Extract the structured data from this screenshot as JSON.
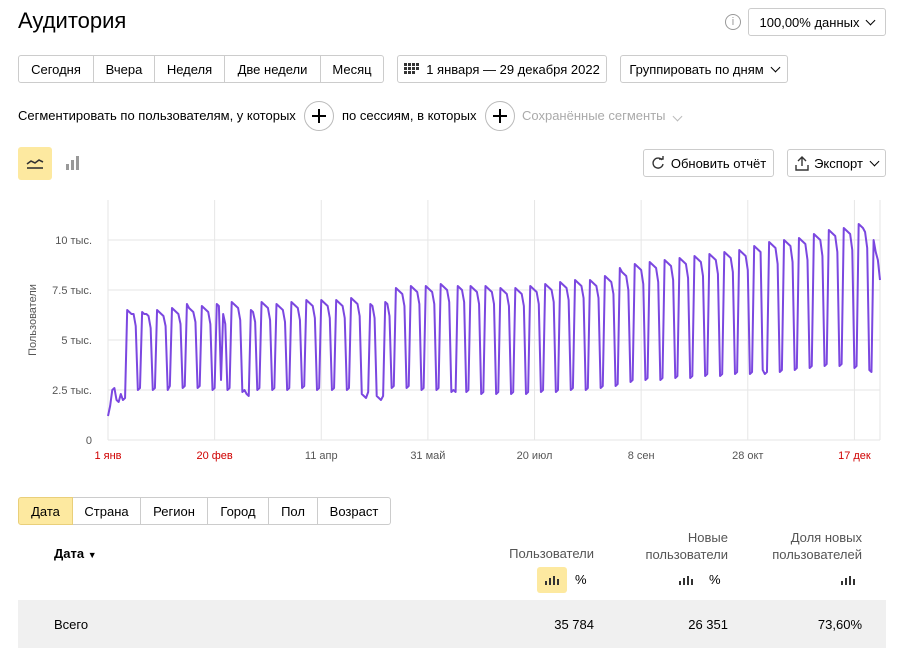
{
  "header": {
    "title": "Аудитория",
    "sampling": "100,00% данных"
  },
  "periods": [
    "Сегодня",
    "Вчера",
    "Неделя",
    "Две недели",
    "Месяц"
  ],
  "date_range": "1 января — 29 декабря 2022",
  "grouping": "Группировать по дням",
  "segment": {
    "by_users": "Сегментировать по пользователям, у которых",
    "by_sessions": "по сессиям, в которых",
    "saved": "Сохранённые сегменты"
  },
  "actions": {
    "refresh": "Обновить отчёт",
    "export": "Экспорт"
  },
  "chart_data": {
    "type": "line",
    "y_label": "Пользователи",
    "color": "#7b47e0",
    "label_color": "#555555",
    "weekend_color": "#d00000",
    "grid": true,
    "ylim": [
      0,
      12000
    ],
    "yticks": [
      0,
      {
        "value": 2500,
        "label": "2.5 тыс."
      },
      {
        "value": 5000,
        "label": "5 тыс."
      },
      {
        "value": 7500,
        "label": "7.5 тыс."
      },
      {
        "value": 10000,
        "label": "10 тыс."
      }
    ],
    "categories": [
      "1 янв",
      null,
      null,
      null,
      null,
      null,
      null,
      null,
      null,
      null,
      null,
      null,
      null,
      null,
      null,
      null,
      null,
      null,
      null,
      null,
      null,
      null,
      null,
      null,
      null,
      null,
      null,
      null,
      null,
      null,
      null,
      null,
      null,
      null,
      null,
      null,
      null,
      null,
      null,
      null,
      null,
      null,
      null,
      null,
      null,
      null,
      null,
      null,
      null,
      null,
      "20 фев",
      null,
      null,
      null,
      null,
      null,
      null,
      null,
      null,
      null,
      null,
      null,
      null,
      null,
      null,
      null,
      null,
      null,
      null,
      null,
      null,
      null,
      null,
      null,
      null,
      null,
      null,
      null,
      null,
      null,
      null,
      null,
      null,
      null,
      null,
      null,
      null,
      null,
      null,
      null,
      null,
      null,
      null,
      null,
      null,
      null,
      null,
      null,
      null,
      null,
      "11 апр",
      null,
      null,
      null,
      null,
      null,
      null,
      null,
      null,
      null,
      null,
      null,
      null,
      null,
      null,
      null,
      null,
      null,
      null,
      null,
      null,
      null,
      null,
      null,
      null,
      null,
      null,
      null,
      null,
      null,
      null,
      null,
      null,
      null,
      null,
      null,
      null,
      null,
      null,
      null,
      null,
      null,
      null,
      null,
      null,
      null,
      null,
      null,
      null,
      null,
      "31 май",
      null,
      null,
      null,
      null,
      null,
      null,
      null,
      null,
      null,
      null,
      null,
      null,
      null,
      null,
      null,
      null,
      null,
      null,
      null,
      null,
      null,
      null,
      null,
      null,
      null,
      null,
      null,
      null,
      null,
      null,
      null,
      null,
      null,
      null,
      null,
      null,
      null,
      null,
      null,
      null,
      null,
      null,
      null,
      null,
      null,
      null,
      null,
      null,
      null,
      "20 июл",
      null,
      null,
      null,
      null,
      null,
      null,
      null,
      null,
      null,
      null,
      null,
      null,
      null,
      null,
      null,
      null,
      null,
      null,
      null,
      null,
      null,
      null,
      null,
      null,
      null,
      null,
      null,
      null,
      null,
      null,
      null,
      null,
      null,
      null,
      null,
      null,
      null,
      null,
      null,
      null,
      null,
      null,
      null,
      null,
      null,
      null,
      null,
      null,
      null,
      "8 сен",
      null,
      null,
      null,
      null,
      null,
      null,
      null,
      null,
      null,
      null,
      null,
      null,
      null,
      null,
      null,
      null,
      null,
      null,
      null,
      null,
      null,
      null,
      null,
      null,
      null,
      null,
      null,
      null,
      null,
      null,
      null,
      null,
      null,
      null,
      null,
      null,
      null,
      null,
      null,
      null,
      null,
      null,
      null,
      null,
      null,
      null,
      null,
      null,
      null,
      "28 окт",
      null,
      null,
      null,
      null,
      null,
      null,
      null,
      null,
      null,
      null,
      null,
      null,
      null,
      null,
      null,
      null,
      null,
      null,
      null,
      null,
      null,
      null,
      null,
      null,
      null,
      null,
      null,
      null,
      null,
      null,
      null,
      null,
      null,
      null,
      null,
      null,
      null,
      null,
      null,
      null,
      null,
      null,
      null,
      null,
      null,
      null,
      null,
      null,
      null,
      "17 дек",
      null,
      null,
      null,
      null,
      null,
      null,
      null,
      null,
      null,
      null,
      null,
      null
    ],
    "values": [
      1200,
      1700,
      2500,
      2600,
      2000,
      1900,
      2300,
      2000,
      2100,
      6500,
      6400,
      6300,
      6300,
      5700,
      2500,
      2600,
      6400,
      6300,
      6300,
      6200,
      5600,
      2500,
      2600,
      6500,
      6400,
      6300,
      6200,
      5700,
      2500,
      2700,
      6600,
      6500,
      6400,
      6300,
      5800,
      2600,
      2700,
      6800,
      6600,
      6500,
      6400,
      5900,
      2600,
      2700,
      6700,
      6600,
      6500,
      6400,
      5800,
      2500,
      2600,
      6800,
      6700,
      3000,
      6300,
      5800,
      2500,
      2600,
      6900,
      6800,
      6700,
      6600,
      6000,
      2400,
      2500,
      2300,
      2200,
      6500,
      6400,
      5900,
      2500,
      2600,
      6900,
      6800,
      6700,
      6600,
      6000,
      2500,
      2600,
      6800,
      6700,
      6600,
      6500,
      5900,
      2500,
      2600,
      6900,
      6800,
      6700,
      6600,
      6000,
      2600,
      2700,
      7000,
      6900,
      6800,
      6700,
      6100,
      2500,
      2600,
      7000,
      6900,
      6800,
      6700,
      6100,
      2500,
      2600,
      7000,
      6900,
      6800,
      6700,
      6100,
      2500,
      2600,
      7100,
      7000,
      6900,
      6800,
      6200,
      2300,
      2200,
      2100,
      2400,
      6800,
      6700,
      6100,
      2200,
      2100,
      2000,
      2200,
      6900,
      6800,
      6200,
      2600,
      2700,
      7600,
      7500,
      7400,
      7300,
      6700,
      2600,
      2700,
      7700,
      7600,
      7500,
      7400,
      6800,
      2500,
      2600,
      7700,
      7600,
      7500,
      7400,
      6800,
      2500,
      2600,
      7800,
      7700,
      7600,
      7500,
      6900,
      2400,
      2500,
      2400,
      7700,
      7600,
      7500,
      6900,
      2400,
      2500,
      7700,
      7600,
      7500,
      7400,
      6800,
      2300,
      2400,
      7700,
      7600,
      7500,
      7400,
      6800,
      2300,
      2400,
      7600,
      7500,
      7400,
      7300,
      6700,
      2300,
      2400,
      7600,
      7500,
      7400,
      7300,
      6700,
      2300,
      2400,
      7700,
      7600,
      7500,
      7400,
      6800,
      2400,
      2500,
      7800,
      7700,
      7600,
      7500,
      6900,
      2400,
      2500,
      7900,
      7800,
      7700,
      7600,
      7000,
      2500,
      2600,
      8000,
      7900,
      7800,
      7700,
      7100,
      2500,
      2600,
      8000,
      7900,
      7800,
      7700,
      7100,
      2600,
      2700,
      8200,
      8100,
      8000,
      7900,
      7300,
      2700,
      2800,
      8600,
      8400,
      8300,
      8200,
      7500,
      2900,
      3000,
      8800,
      8700,
      8600,
      8500,
      7800,
      3000,
      3100,
      8900,
      8800,
      8700,
      8600,
      7900,
      3000,
      3100,
      9000,
      8900,
      8800,
      8700,
      8000,
      3100,
      3200,
      9100,
      9000,
      8900,
      8800,
      8100,
      3100,
      3200,
      9200,
      9100,
      9000,
      8900,
      8200,
      3200,
      3300,
      9300,
      9200,
      9100,
      9000,
      8300,
      3200,
      3300,
      9400,
      9300,
      9200,
      9100,
      8400,
      3300,
      3400,
      9500,
      9400,
      9300,
      9200,
      8500,
      3300,
      3400,
      9700,
      9600,
      9500,
      9400,
      3500,
      3300,
      3400,
      9900,
      9800,
      9700,
      9600,
      8800,
      3400,
      3500,
      10000,
      9900,
      9800,
      9700,
      8900,
      3500,
      3600,
      10100,
      10000,
      9900,
      9800,
      9000,
      3600,
      3700,
      10300,
      10200,
      10100,
      10000,
      9200,
      3700,
      3800,
      10500,
      10400,
      10300,
      10200,
      9400,
      3700,
      3800,
      10600,
      10500,
      10400,
      10300,
      9500,
      3600,
      3700,
      10800,
      10700,
      10600,
      10400,
      9600,
      3500,
      3400,
      10000,
      9400,
      9000,
      8000
    ]
  },
  "tabs": [
    "Дата",
    "Страна",
    "Регион",
    "Город",
    "Пол",
    "Возраст"
  ],
  "table": {
    "columns": [
      "Дата",
      "Пользователи",
      "Новые пользователи",
      "Доля новых пользователей"
    ],
    "percent_toggle": "%",
    "total": {
      "label": "Всего",
      "cells": [
        "35 784",
        "26 351",
        "73,60%"
      ]
    }
  }
}
